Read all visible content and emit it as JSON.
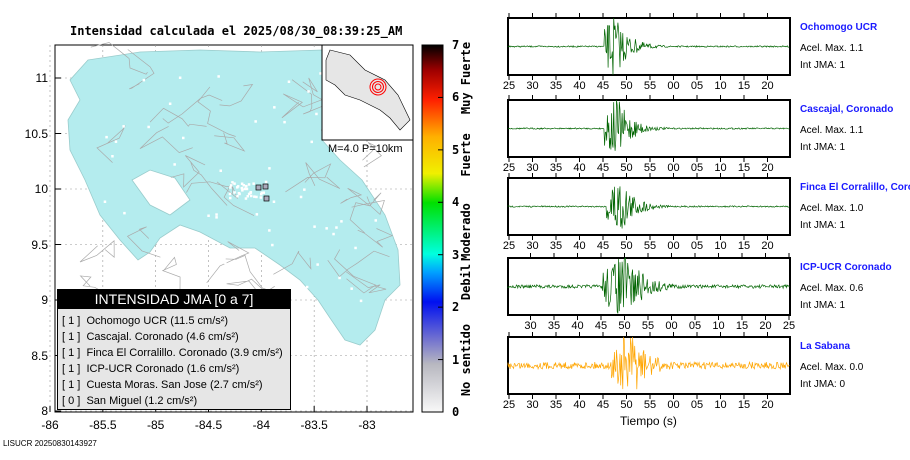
{
  "title": "Intensidad calculada el 2025/08/30_08:39:25_AM",
  "footer": "LISUCR 20250830143927",
  "chart_data": [
    {
      "type": "map",
      "title": "Intensidad calculada el 2025/08/30_08:39:25_AM",
      "lon_ticks": [
        "-86",
        "-85.5",
        "-85",
        "-84.5",
        "-84",
        "-83.5",
        "-83"
      ],
      "lat_ticks": [
        "11",
        "10.5",
        "10",
        "9.5",
        "9",
        "8.5",
        "8"
      ],
      "xlim": [
        -86,
        -82.7
      ],
      "ylim": [
        8,
        11.3
      ],
      "inset_label": "M=4.0 P=10km",
      "legend": {
        "title": "INTENSIDAD JMA [0 a 7]",
        "items": [
          {
            "jma": "[ 1 ]",
            "name": "Ochomogo UCR (11.5 cm/s²)"
          },
          {
            "jma": "[ 1 ]",
            "name": "Cascajal. Coronado (4.6 cm/s²)"
          },
          {
            "jma": "[ 1 ]",
            "name": "Finca El Corralillo. Coronado (3.9 cm/s²)"
          },
          {
            "jma": "[ 1 ]",
            "name": "ICP-UCR Coronado (1.6 cm/s²)"
          },
          {
            "jma": "[ 1 ]",
            "name": "Cuesta Moras. San Jose (2.7 cm/s²)"
          },
          {
            "jma": "[ 0 ]",
            "name": "San Miguel (1.2 cm/s²)"
          }
        ]
      },
      "colorbar": {
        "ticks": [
          "0",
          "1",
          "2",
          "3",
          "4",
          "5",
          "6",
          "7"
        ],
        "categories": [
          "No sentido",
          "Debil",
          "Moderado",
          "Fuerte",
          "Muy Fuerte"
        ]
      }
    },
    {
      "type": "line",
      "xlabel": "Tiempo (s)",
      "stations": [
        {
          "name": "Ochomogo UCR",
          "acel": "Acel. Max. 1.1",
          "jma": "Int JMA: 1",
          "color": "#006400",
          "ticks": [
            "25",
            "30",
            "35",
            "40",
            "45",
            "50",
            "55",
            "00",
            "05",
            "10",
            "15",
            "20"
          ],
          "onset": 45.5,
          "peak": 47.5,
          "amp": 1.0,
          "noise": 0.02
        },
        {
          "name": "Cascajal, Coronado",
          "acel": "Acel. Max. 1.1",
          "jma": "Int JMA: 1",
          "color": "#006400",
          "ticks": [
            "25",
            "30",
            "35",
            "40",
            "45",
            "50",
            "55",
            "00",
            "05",
            "10",
            "15",
            "20"
          ],
          "onset": 45.5,
          "peak": 48,
          "amp": 1.0,
          "noise": 0.02
        },
        {
          "name": "Finca El Corralillo, Coronado",
          "acel": "Acel. Max. 1.0",
          "jma": "Int JMA: 1",
          "color": "#006400",
          "ticks": [
            "25",
            "30",
            "35",
            "40",
            "45",
            "50",
            "55",
            "00",
            "05",
            "10",
            "15",
            "20"
          ],
          "onset": 46,
          "peak": 48.5,
          "amp": 1.0,
          "noise": 0.02
        },
        {
          "name": "ICP-UCR Coronado",
          "acel": "Acel. Max. 0.6",
          "jma": "Int JMA: 1",
          "color": "#006400",
          "ticks": [
            "30",
            "35",
            "40",
            "45",
            "50",
            "55",
            "00",
            "05",
            "10",
            "15",
            "20",
            "25"
          ],
          "onset": 46,
          "peak": 51,
          "amp": 1.0,
          "noise": 0.05
        },
        {
          "name": "La Sabana",
          "acel": "Acel. Max. 0.0",
          "jma": "Int JMA: 0",
          "color": "#ffa500",
          "ticks": [
            "25",
            "30",
            "35",
            "40",
            "45",
            "50",
            "55",
            "00",
            "05",
            "10",
            "15",
            "20"
          ],
          "onset": 47,
          "peak": 51,
          "amp": 1.0,
          "noise": 0.1
        }
      ]
    }
  ]
}
